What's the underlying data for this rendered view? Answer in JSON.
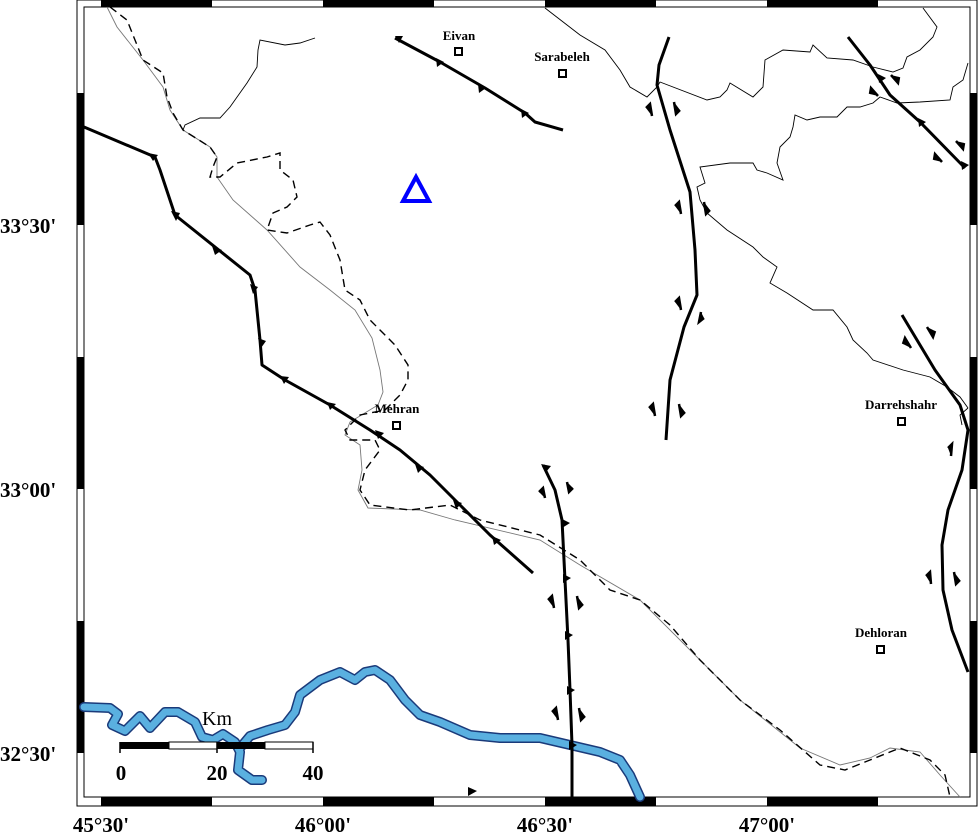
{
  "map": {
    "latitude_labels": [
      "33°30'",
      "33°00'",
      "32°30'"
    ],
    "longitude_labels": [
      "45°30'",
      "46°00'",
      "46°30'",
      "47°00'"
    ],
    "cities": [
      {
        "name": "Eivan"
      },
      {
        "name": "Sarabeleh"
      },
      {
        "name": "Mehran"
      },
      {
        "name": "Darrehshahr"
      },
      {
        "name": "Dehloran"
      }
    ],
    "scale_bar": {
      "unit": "Km",
      "labels": [
        "0",
        "20",
        "40"
      ]
    },
    "marker": {
      "shape": "triangle",
      "color": "#0000ff"
    },
    "colors": {
      "river_fill": "#5ab0e0",
      "river_outline": "#1a3a7a",
      "fault": "#000000",
      "border": "#000000"
    }
  }
}
